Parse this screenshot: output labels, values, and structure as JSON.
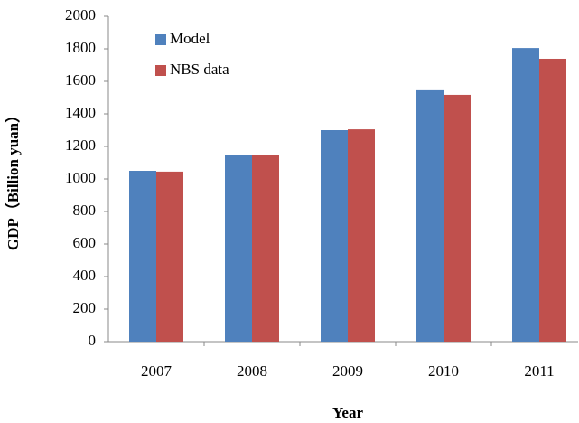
{
  "chart_data": {
    "type": "bar",
    "x_label": "Year",
    "y_label": "GDP（Billion yuan）",
    "categories": [
      "2007",
      "2008",
      "2009",
      "2010",
      "2011"
    ],
    "series": [
      {
        "name": "Model",
        "color": "#4f81bd",
        "values": [
          1050,
          1150,
          1300,
          1545,
          1805
        ]
      },
      {
        "name": "NBS data",
        "color": "#c0504d",
        "values": [
          1045,
          1145,
          1305,
          1517,
          1739
        ]
      }
    ],
    "ylim": [
      0,
      2000
    ],
    "yticks": [
      0,
      200,
      400,
      600,
      800,
      1000,
      1200,
      1400,
      1600,
      1800,
      2000
    ],
    "grid": false,
    "legend": "upper left"
  }
}
